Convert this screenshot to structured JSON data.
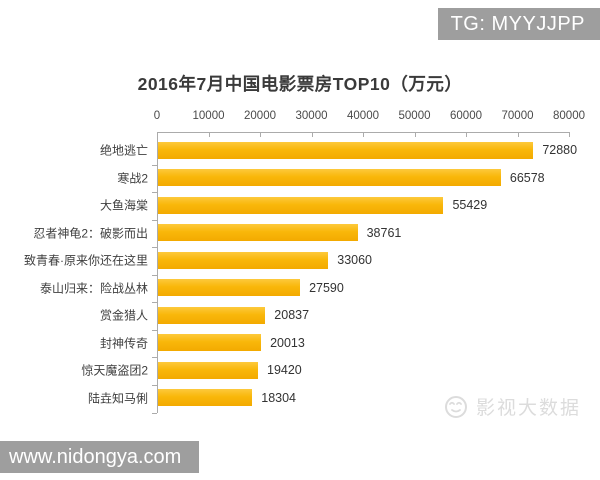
{
  "page": {
    "tg_badge": "TG: MYYJJPP",
    "url_badge": "www.nidongya.com",
    "watermark_text": "影视大数据",
    "watermark_icon": "smiley-face-icon",
    "badge_color": "#9e9e9e",
    "watermark_color": "#dcdcdc"
  },
  "chart_data": {
    "type": "bar",
    "orientation": "horizontal",
    "title": "2016年7月中国电影票房TOP10（万元）",
    "categories": [
      "绝地逃亡",
      "寒战2",
      "大鱼海棠",
      "忍者神龟2：破影而出",
      "致青春·原来你还在这里",
      "泰山归来：险战丛林",
      "赏金猎人",
      "封神传奇",
      "惊天魔盗团2",
      "陆垚知马俐"
    ],
    "values": [
      72880,
      66578,
      55429,
      38761,
      33060,
      27590,
      20837,
      20013,
      19420,
      18304
    ],
    "xlabel": "",
    "ylabel": "",
    "xlim": [
      0,
      80000
    ],
    "x_ticks": [
      0,
      10000,
      20000,
      30000,
      40000,
      50000,
      60000,
      70000,
      80000
    ],
    "axis_position": "top",
    "grid": false,
    "legend": false,
    "value_labels": true,
    "bar_color": "#f9b70a",
    "axis_color": "#ababab"
  }
}
